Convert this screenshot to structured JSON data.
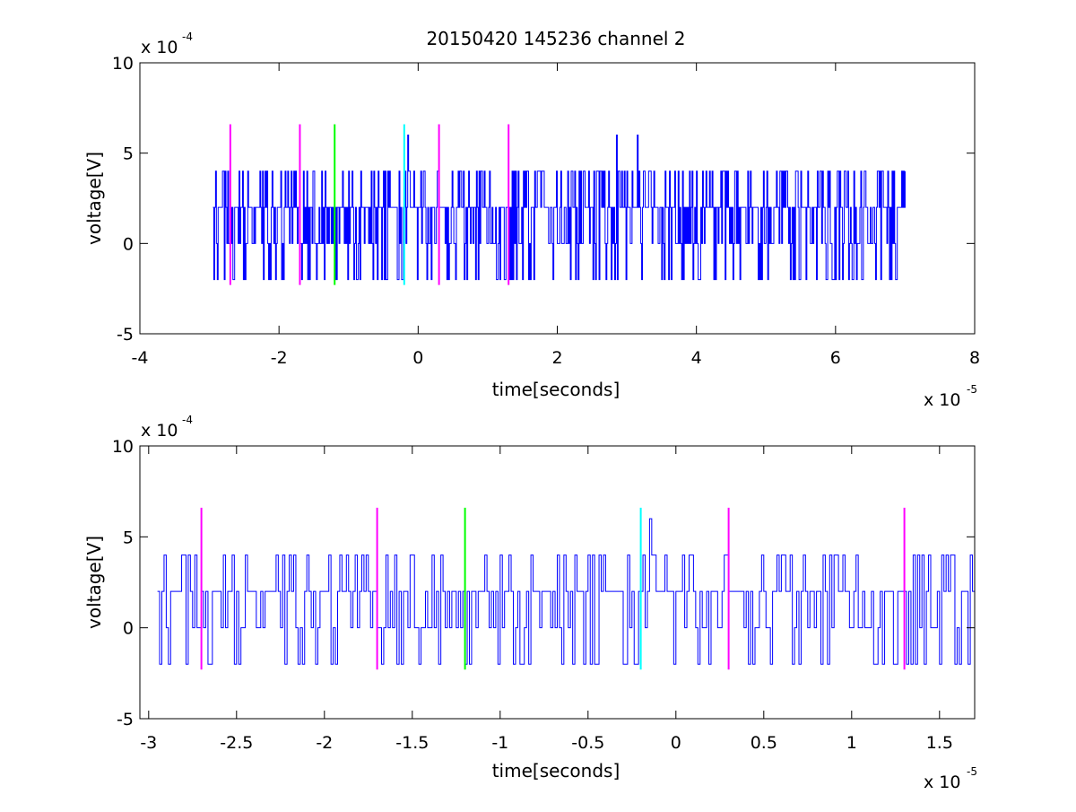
{
  "chart_data": [
    {
      "type": "line",
      "title": "20150420 145236 channel 2",
      "xlabel": "time[seconds]",
      "ylabel": "voltage[V]",
      "x_multiplier": {
        "base": "x 10",
        "exp": "-5"
      },
      "y_multiplier": {
        "base": "x 10",
        "exp": "-4"
      },
      "xlim": [
        -4,
        8
      ],
      "ylim": [
        -5,
        10
      ],
      "x_ticks": [
        -4,
        -2,
        0,
        2,
        4,
        6,
        8
      ],
      "x_tick_labels": [
        "-4",
        "-2",
        "0",
        "2",
        "4",
        "6",
        "8"
      ],
      "y_ticks": [
        -5,
        0,
        5,
        10
      ],
      "y_tick_labels": [
        "-5",
        "0",
        "5",
        "10"
      ],
      "signal": {
        "color": "#0000ff",
        "x_start": -2.95,
        "x_end": 7.0,
        "levels": [
          -2,
          0,
          2,
          4
        ],
        "peaks": [
          {
            "x": -0.15,
            "y": 6
          },
          {
            "x": 2.85,
            "y": 6
          },
          {
            "x": 3.15,
            "y": 6
          }
        ]
      },
      "markers": [
        {
          "x": -2.7,
          "color": "#ff00ff",
          "y_from": -2.3,
          "y_to": 6.6
        },
        {
          "x": -1.7,
          "color": "#ff00ff",
          "y_from": -2.3,
          "y_to": 6.6
        },
        {
          "x": -1.2,
          "color": "#00ff00",
          "y_from": -2.3,
          "y_to": 6.6
        },
        {
          "x": -0.2,
          "color": "#00ffff",
          "y_from": -2.3,
          "y_to": 6.6
        },
        {
          "x": 0.3,
          "color": "#ff00ff",
          "y_from": -2.3,
          "y_to": 6.6
        },
        {
          "x": 1.3,
          "color": "#ff00ff",
          "y_from": -2.3,
          "y_to": 6.6
        }
      ],
      "grid": false,
      "legend": "none"
    },
    {
      "type": "line",
      "title": "",
      "xlabel": "time[seconds]",
      "ylabel": "voltage[V]",
      "x_multiplier": {
        "base": "x 10",
        "exp": "-5"
      },
      "y_multiplier": {
        "base": "x 10",
        "exp": "-4"
      },
      "xlim": [
        -3.05,
        1.7
      ],
      "ylim": [
        -5,
        10
      ],
      "x_ticks": [
        -3,
        -2.5,
        -2,
        -1.5,
        -1,
        -0.5,
        0,
        0.5,
        1,
        1.5
      ],
      "x_tick_labels": [
        "-3",
        "-2.5",
        "-2",
        "-1.5",
        "-1",
        "-0.5",
        "0",
        "0.5",
        "1",
        "1.5"
      ],
      "y_ticks": [
        -5,
        0,
        5,
        10
      ],
      "y_tick_labels": [
        "-5",
        "0",
        "5",
        "10"
      ],
      "signal": {
        "color": "#0000ff",
        "x_start": -2.95,
        "x_end": 1.7,
        "levels": [
          -2,
          0,
          2,
          4
        ],
        "peaks": [
          {
            "x": -0.15,
            "y": 6
          }
        ]
      },
      "markers": [
        {
          "x": -2.7,
          "color": "#ff00ff",
          "y_from": -2.3,
          "y_to": 6.6
        },
        {
          "x": -1.7,
          "color": "#ff00ff",
          "y_from": -2.3,
          "y_to": 6.6
        },
        {
          "x": -1.2,
          "color": "#00ff00",
          "y_from": -2.3,
          "y_to": 6.6
        },
        {
          "x": -0.2,
          "color": "#00ffff",
          "y_from": -2.3,
          "y_to": 6.6
        },
        {
          "x": 0.3,
          "color": "#ff00ff",
          "y_from": -2.3,
          "y_to": 6.6
        },
        {
          "x": 1.3,
          "color": "#ff00ff",
          "y_from": -2.3,
          "y_to": 6.6
        }
      ],
      "grid": false,
      "legend": "none"
    }
  ]
}
